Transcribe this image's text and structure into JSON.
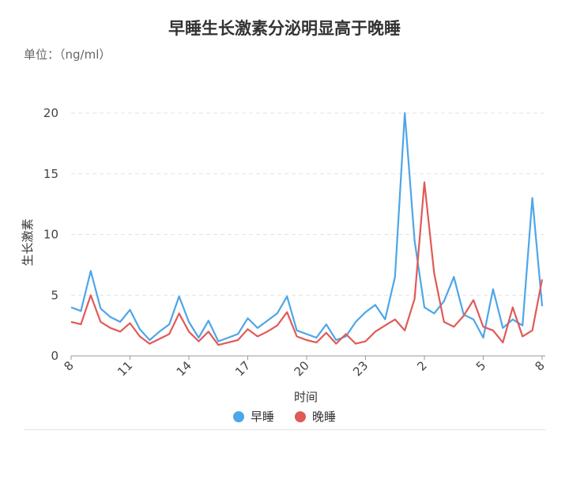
{
  "chart_data": {
    "type": "line",
    "title": "早睡生长激素分泌明显高于晚睡",
    "unit_label": "单位：（ng/ml）",
    "xlabel": "时间",
    "ylabel": "生长激素",
    "ylim": [
      0,
      20
    ],
    "yticks": [
      0,
      5,
      10,
      15,
      20
    ],
    "xtick_labels": [
      "8",
      "11",
      "14",
      "17",
      "20",
      "23",
      "2",
      "5",
      "8"
    ],
    "grid": true,
    "legend_position": "bottom",
    "series": [
      {
        "name": "早睡",
        "color": "#4da6e8",
        "values": [
          4.0,
          3.7,
          7.0,
          3.9,
          3.2,
          2.8,
          3.8,
          2.2,
          1.3,
          2.0,
          2.6,
          4.9,
          2.8,
          1.5,
          2.9,
          1.2,
          1.5,
          1.8,
          3.1,
          2.3,
          2.9,
          3.5,
          4.9,
          2.1,
          1.8,
          1.5,
          2.6,
          1.3,
          1.6,
          2.8,
          3.6,
          4.2,
          3.0,
          6.5,
          20.0,
          9.5,
          4.0,
          3.5,
          4.5,
          6.5,
          3.4,
          3.0,
          1.5,
          5.5,
          2.3,
          3.0,
          2.5,
          13.0,
          4.1
        ]
      },
      {
        "name": "晚睡",
        "color": "#e05a57",
        "values": [
          2.8,
          2.6,
          5.0,
          2.8,
          2.3,
          2.0,
          2.7,
          1.6,
          1.0,
          1.4,
          1.8,
          3.5,
          2.0,
          1.2,
          2.0,
          0.9,
          1.1,
          1.3,
          2.2,
          1.6,
          2.0,
          2.5,
          3.6,
          1.6,
          1.3,
          1.1,
          1.9,
          1.0,
          1.8,
          1.0,
          1.2,
          2.0,
          2.5,
          3.0,
          2.1,
          4.7,
          14.3,
          6.8,
          2.8,
          2.4,
          3.3,
          4.6,
          2.4,
          2.1,
          1.1,
          4.0,
          1.6,
          2.1,
          6.3
        ]
      }
    ]
  }
}
